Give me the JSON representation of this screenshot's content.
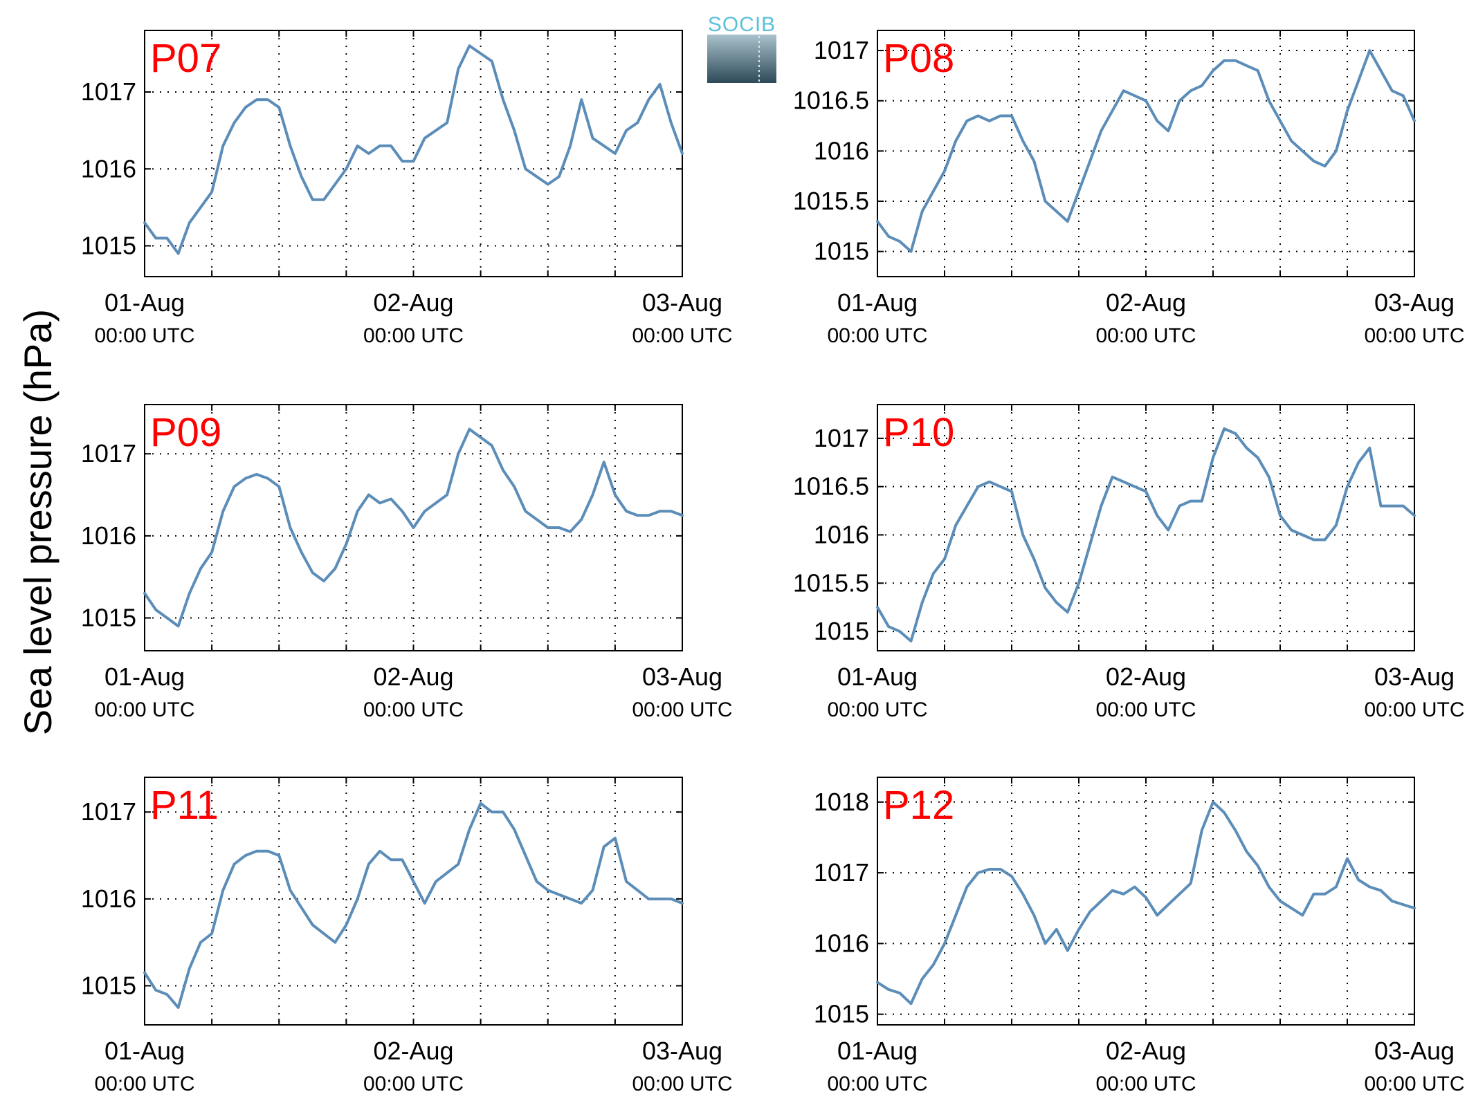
{
  "figure": {
    "ylabel": "Sea level pressure (hPa)",
    "logo_text": "SOCIB"
  },
  "colors": {
    "line": "#5b8db8",
    "title": "#ff0000",
    "axis": "#000000",
    "grid": "#000000",
    "logo_top": "#5bc0d8",
    "logo_bottom": "#2e4a58"
  },
  "chart_data": [
    {
      "type": "line",
      "title": "P07",
      "x_ticks": [
        {
          "x": 0,
          "date": "01-Aug",
          "time": "00:00 UTC"
        },
        {
          "x": 24,
          "date": "02-Aug",
          "time": "00:00 UTC"
        },
        {
          "x": 48,
          "date": "03-Aug",
          "time": "00:00 UTC"
        }
      ],
      "x_grid": [
        0,
        6,
        12,
        18,
        24,
        30,
        36,
        42,
        48
      ],
      "xlim": [
        0,
        48
      ],
      "yticks": [
        1015,
        1016,
        1017
      ],
      "ytick_labels": [
        "1015",
        "1016",
        "1017"
      ],
      "ylim": [
        1014.6,
        1017.8
      ],
      "grid": true,
      "x": [
        0,
        1,
        2,
        3,
        4,
        5,
        6,
        7,
        8,
        9,
        10,
        11,
        12,
        13,
        14,
        15,
        16,
        17,
        18,
        19,
        20,
        21,
        22,
        23,
        24,
        25,
        26,
        27,
        28,
        29,
        30,
        31,
        32,
        33,
        34,
        35,
        36,
        37,
        38,
        39,
        40,
        41,
        42,
        43,
        44,
        45,
        46,
        47,
        48
      ],
      "values": [
        1015.3,
        1015.1,
        1015.1,
        1014.9,
        1015.3,
        1015.5,
        1015.7,
        1016.3,
        1016.6,
        1016.8,
        1016.9,
        1016.9,
        1016.8,
        1016.3,
        1015.9,
        1015.6,
        1015.6,
        1015.8,
        1016.0,
        1016.3,
        1016.2,
        1016.3,
        1016.3,
        1016.1,
        1016.1,
        1016.4,
        1016.5,
        1016.6,
        1017.3,
        1017.6,
        1017.5,
        1017.4,
        1016.9,
        1016.5,
        1016.0,
        1015.9,
        1015.8,
        1015.9,
        1016.3,
        1016.9,
        1016.4,
        1016.3,
        1016.2,
        1016.5,
        1016.6,
        1016.9,
        1017.1,
        1016.6,
        1016.2
      ]
    },
    {
      "type": "line",
      "title": "P08",
      "x_ticks": [
        {
          "x": 0,
          "date": "01-Aug",
          "time": "00:00 UTC"
        },
        {
          "x": 24,
          "date": "02-Aug",
          "time": "00:00 UTC"
        },
        {
          "x": 48,
          "date": "03-Aug",
          "time": "00:00 UTC"
        }
      ],
      "x_grid": [
        0,
        6,
        12,
        18,
        24,
        30,
        36,
        42,
        48
      ],
      "xlim": [
        0,
        48
      ],
      "yticks": [
        1015,
        1015.5,
        1016,
        1016.5,
        1017
      ],
      "ytick_labels": [
        "1015",
        "1015.5",
        "1016",
        "1016.5",
        "1017"
      ],
      "ylim": [
        1014.75,
        1017.2
      ],
      "grid": true,
      "x": [
        0,
        1,
        2,
        3,
        4,
        5,
        6,
        7,
        8,
        9,
        10,
        11,
        12,
        13,
        14,
        15,
        16,
        17,
        18,
        19,
        20,
        21,
        22,
        23,
        24,
        25,
        26,
        27,
        28,
        29,
        30,
        31,
        32,
        33,
        34,
        35,
        36,
        37,
        38,
        39,
        40,
        41,
        42,
        43,
        44,
        45,
        46,
        47,
        48
      ],
      "values": [
        1015.3,
        1015.15,
        1015.1,
        1015.0,
        1015.4,
        1015.6,
        1015.8,
        1016.1,
        1016.3,
        1016.35,
        1016.3,
        1016.35,
        1016.35,
        1016.1,
        1015.9,
        1015.5,
        1015.4,
        1015.3,
        1015.6,
        1015.9,
        1016.2,
        1016.4,
        1016.6,
        1016.55,
        1016.5,
        1016.3,
        1016.2,
        1016.5,
        1016.6,
        1016.65,
        1016.8,
        1016.9,
        1016.9,
        1016.85,
        1016.8,
        1016.5,
        1016.3,
        1016.1,
        1016.0,
        1015.9,
        1015.85,
        1016.0,
        1016.4,
        1016.7,
        1017.0,
        1016.8,
        1016.6,
        1016.55,
        1016.3
      ]
    },
    {
      "type": "line",
      "title": "P09",
      "x_ticks": [
        {
          "x": 0,
          "date": "01-Aug",
          "time": "00:00 UTC"
        },
        {
          "x": 24,
          "date": "02-Aug",
          "time": "00:00 UTC"
        },
        {
          "x": 48,
          "date": "03-Aug",
          "time": "00:00 UTC"
        }
      ],
      "x_grid": [
        0,
        6,
        12,
        18,
        24,
        30,
        36,
        42,
        48
      ],
      "xlim": [
        0,
        48
      ],
      "yticks": [
        1015,
        1016,
        1017
      ],
      "ytick_labels": [
        "1015",
        "1016",
        "1017"
      ],
      "ylim": [
        1014.6,
        1017.6
      ],
      "grid": true,
      "x": [
        0,
        1,
        2,
        3,
        4,
        5,
        6,
        7,
        8,
        9,
        10,
        11,
        12,
        13,
        14,
        15,
        16,
        17,
        18,
        19,
        20,
        21,
        22,
        23,
        24,
        25,
        26,
        27,
        28,
        29,
        30,
        31,
        32,
        33,
        34,
        35,
        36,
        37,
        38,
        39,
        40,
        41,
        42,
        43,
        44,
        45,
        46,
        47,
        48
      ],
      "values": [
        1015.3,
        1015.1,
        1015.0,
        1014.9,
        1015.3,
        1015.6,
        1015.8,
        1016.3,
        1016.6,
        1016.7,
        1016.75,
        1016.7,
        1016.6,
        1016.1,
        1015.8,
        1015.55,
        1015.45,
        1015.6,
        1015.9,
        1016.3,
        1016.5,
        1016.4,
        1016.45,
        1016.3,
        1016.1,
        1016.3,
        1016.4,
        1016.5,
        1017.0,
        1017.3,
        1017.2,
        1017.1,
        1016.8,
        1016.6,
        1016.3,
        1016.2,
        1016.1,
        1016.1,
        1016.05,
        1016.2,
        1016.5,
        1016.9,
        1016.5,
        1016.3,
        1016.25,
        1016.25,
        1016.3,
        1016.3,
        1016.25
      ]
    },
    {
      "type": "line",
      "title": "P10",
      "x_ticks": [
        {
          "x": 0,
          "date": "01-Aug",
          "time": "00:00 UTC"
        },
        {
          "x": 24,
          "date": "02-Aug",
          "time": "00:00 UTC"
        },
        {
          "x": 48,
          "date": "03-Aug",
          "time": "00:00 UTC"
        }
      ],
      "x_grid": [
        0,
        6,
        12,
        18,
        24,
        30,
        36,
        42,
        48
      ],
      "xlim": [
        0,
        48
      ],
      "yticks": [
        1015,
        1015.5,
        1016,
        1016.5,
        1017
      ],
      "ytick_labels": [
        "1015",
        "1015.5",
        "1016",
        "1016.5",
        "1017"
      ],
      "ylim": [
        1014.8,
        1017.35
      ],
      "grid": true,
      "x": [
        0,
        1,
        2,
        3,
        4,
        5,
        6,
        7,
        8,
        9,
        10,
        11,
        12,
        13,
        14,
        15,
        16,
        17,
        18,
        19,
        20,
        21,
        22,
        23,
        24,
        25,
        26,
        27,
        28,
        29,
        30,
        31,
        32,
        33,
        34,
        35,
        36,
        37,
        38,
        39,
        40,
        41,
        42,
        43,
        44,
        45,
        46,
        47,
        48
      ],
      "values": [
        1015.25,
        1015.05,
        1015.0,
        1014.9,
        1015.3,
        1015.6,
        1015.75,
        1016.1,
        1016.3,
        1016.5,
        1016.55,
        1016.5,
        1016.45,
        1016.0,
        1015.75,
        1015.45,
        1015.3,
        1015.2,
        1015.5,
        1015.9,
        1016.3,
        1016.6,
        1016.55,
        1016.5,
        1016.45,
        1016.2,
        1016.05,
        1016.3,
        1016.35,
        1016.35,
        1016.8,
        1017.1,
        1017.05,
        1016.9,
        1016.8,
        1016.6,
        1016.2,
        1016.05,
        1016.0,
        1015.95,
        1015.95,
        1016.1,
        1016.5,
        1016.75,
        1016.9,
        1016.3,
        1016.3,
        1016.3,
        1016.2
      ]
    },
    {
      "type": "line",
      "title": "P11",
      "x_ticks": [
        {
          "x": 0,
          "date": "01-Aug",
          "time": "00:00 UTC"
        },
        {
          "x": 24,
          "date": "02-Aug",
          "time": "00:00 UTC"
        },
        {
          "x": 48,
          "date": "03-Aug",
          "time": "00:00 UTC"
        }
      ],
      "x_grid": [
        0,
        6,
        12,
        18,
        24,
        30,
        36,
        42,
        48
      ],
      "xlim": [
        0,
        48
      ],
      "yticks": [
        1015,
        1016,
        1017
      ],
      "ytick_labels": [
        "1015",
        "1016",
        "1017"
      ],
      "ylim": [
        1014.55,
        1017.4
      ],
      "grid": true,
      "x": [
        0,
        1,
        2,
        3,
        4,
        5,
        6,
        7,
        8,
        9,
        10,
        11,
        12,
        13,
        14,
        15,
        16,
        17,
        18,
        19,
        20,
        21,
        22,
        23,
        24,
        25,
        26,
        27,
        28,
        29,
        30,
        31,
        32,
        33,
        34,
        35,
        36,
        37,
        38,
        39,
        40,
        41,
        42,
        43,
        44,
        45,
        46,
        47,
        48
      ],
      "values": [
        1015.15,
        1014.95,
        1014.9,
        1014.75,
        1015.2,
        1015.5,
        1015.6,
        1016.1,
        1016.4,
        1016.5,
        1016.55,
        1016.55,
        1016.5,
        1016.1,
        1015.9,
        1015.7,
        1015.6,
        1015.5,
        1015.7,
        1016.0,
        1016.4,
        1016.55,
        1016.45,
        1016.45,
        1016.2,
        1015.95,
        1016.2,
        1016.3,
        1016.4,
        1016.8,
        1017.1,
        1017.0,
        1017.0,
        1016.8,
        1016.5,
        1016.2,
        1016.1,
        1016.05,
        1016.0,
        1015.95,
        1016.1,
        1016.6,
        1016.7,
        1016.2,
        1016.1,
        1016.0,
        1016.0,
        1016.0,
        1015.95
      ]
    },
    {
      "type": "line",
      "title": "P12",
      "x_ticks": [
        {
          "x": 0,
          "date": "01-Aug",
          "time": "00:00 UTC"
        },
        {
          "x": 24,
          "date": "02-Aug",
          "time": "00:00 UTC"
        },
        {
          "x": 48,
          "date": "03-Aug",
          "time": "00:00 UTC"
        }
      ],
      "x_grid": [
        0,
        6,
        12,
        18,
        24,
        30,
        36,
        42,
        48
      ],
      "xlim": [
        0,
        48
      ],
      "yticks": [
        1015,
        1016,
        1017,
        1018
      ],
      "ytick_labels": [
        "1015",
        "1016",
        "1017",
        "1018"
      ],
      "ylim": [
        1014.85,
        1018.35
      ],
      "grid": true,
      "x": [
        0,
        1,
        2,
        3,
        4,
        5,
        6,
        7,
        8,
        9,
        10,
        11,
        12,
        13,
        14,
        15,
        16,
        17,
        18,
        19,
        20,
        21,
        22,
        23,
        24,
        25,
        26,
        27,
        28,
        29,
        30,
        31,
        32,
        33,
        34,
        35,
        36,
        37,
        38,
        39,
        40,
        41,
        42,
        43,
        44,
        45,
        46,
        47,
        48
      ],
      "values": [
        1015.45,
        1015.35,
        1015.3,
        1015.15,
        1015.5,
        1015.7,
        1016.0,
        1016.4,
        1016.8,
        1017.0,
        1017.05,
        1017.05,
        1016.95,
        1016.7,
        1016.4,
        1016.0,
        1016.2,
        1015.9,
        1016.2,
        1016.45,
        1016.6,
        1016.75,
        1016.7,
        1016.8,
        1016.65,
        1016.4,
        1016.55,
        1016.7,
        1016.85,
        1017.6,
        1018.0,
        1017.85,
        1017.6,
        1017.3,
        1017.1,
        1016.8,
        1016.6,
        1016.5,
        1016.4,
        1016.7,
        1016.7,
        1016.8,
        1017.2,
        1016.9,
        1016.8,
        1016.75,
        1016.6,
        1016.55,
        1016.5
      ]
    }
  ]
}
